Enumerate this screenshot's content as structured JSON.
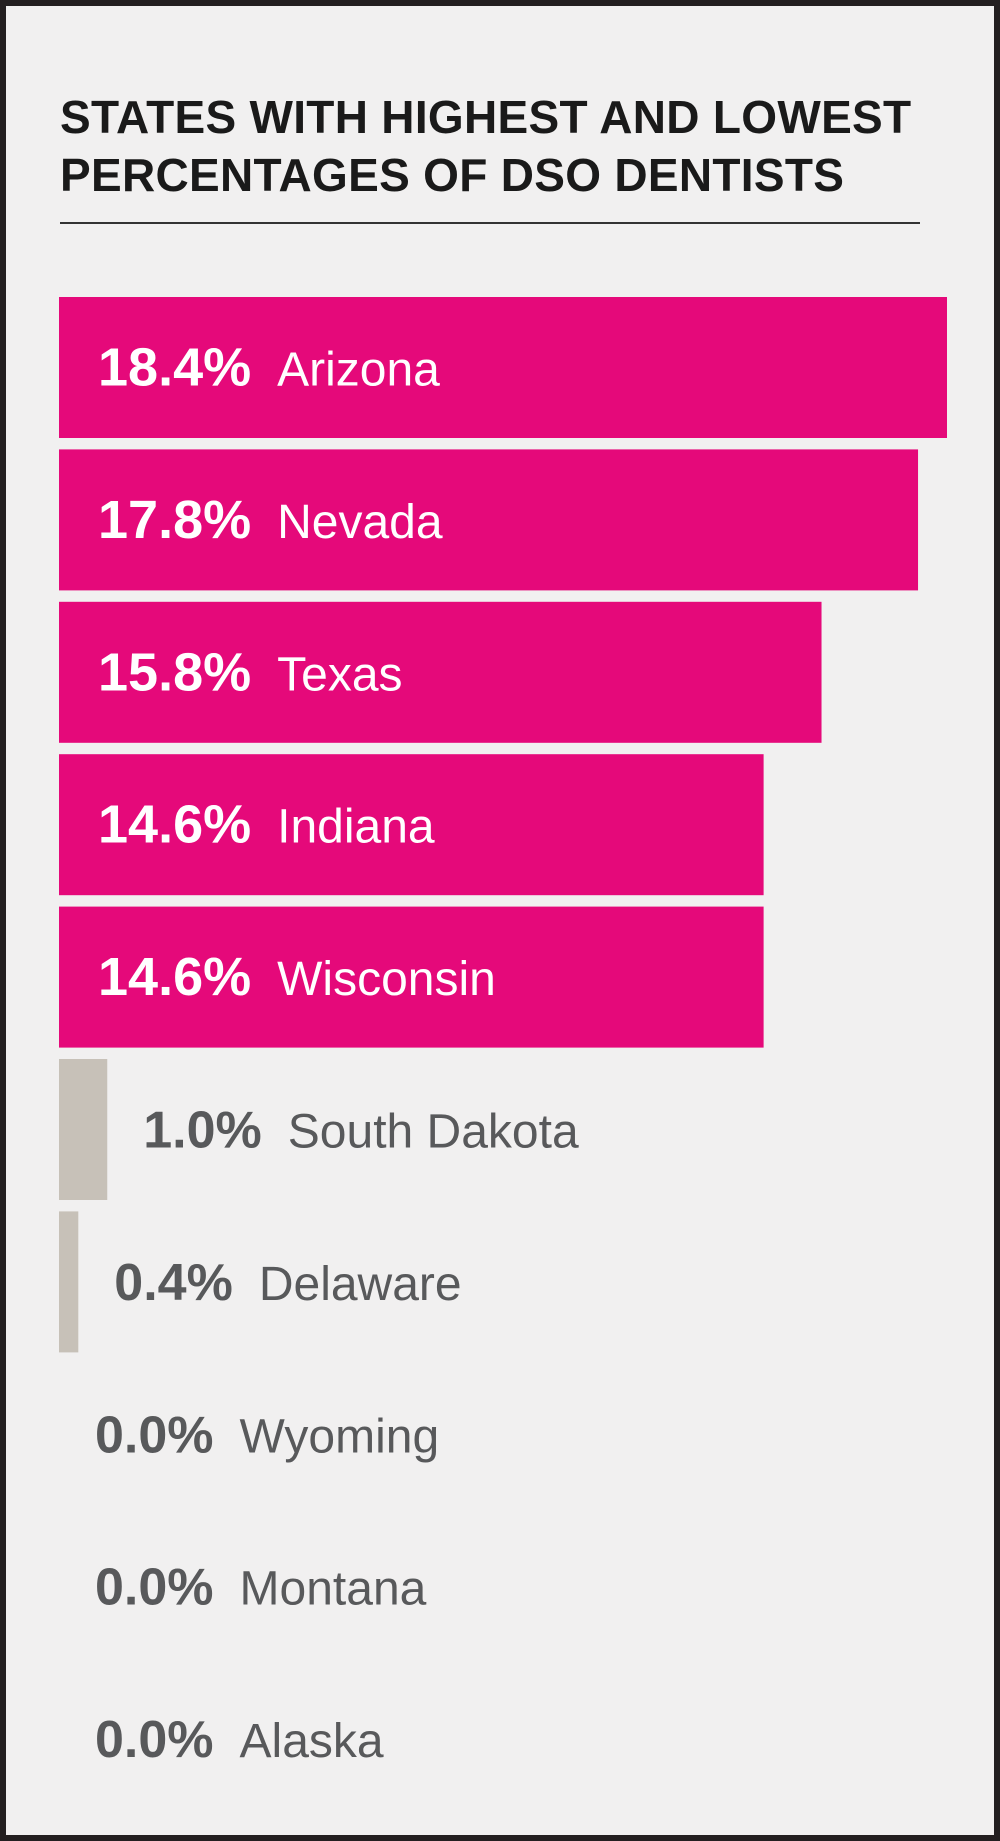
{
  "colors": {
    "background": "#f1f0f0",
    "border": "#231f20",
    "highlight_bar": "#e5097a",
    "low_bar": "#c7c1b8",
    "highlight_text": "#ffffff",
    "low_text": "#58595b"
  },
  "chart_data": {
    "type": "bar",
    "orientation": "horizontal",
    "title": "STATES WITH HIGHEST AND LOWEST\nPERCENTAGES OF DSO DENTISTS",
    "grid": false,
    "legend": "none",
    "xlim": [
      0,
      18.4
    ],
    "categories": [
      "Arizona",
      "Nevada",
      "Texas",
      "Indiana",
      "Wisconsin",
      "South Dakota",
      "Delaware",
      "Wyoming",
      "Montana",
      "Alaska"
    ],
    "values": [
      18.4,
      17.8,
      15.8,
      14.6,
      14.6,
      1.0,
      0.4,
      0.0,
      0.0,
      0.0
    ],
    "value_labels": [
      "18.4%",
      "17.8%",
      "15.8%",
      "14.6%",
      "14.6%",
      "1.0%",
      "0.4%",
      "0.0%",
      "0.0%",
      "0.0%"
    ],
    "groups": [
      "highest",
      "highest",
      "highest",
      "highest",
      "highest",
      "lowest",
      "lowest",
      "lowest",
      "lowest",
      "lowest"
    ]
  }
}
